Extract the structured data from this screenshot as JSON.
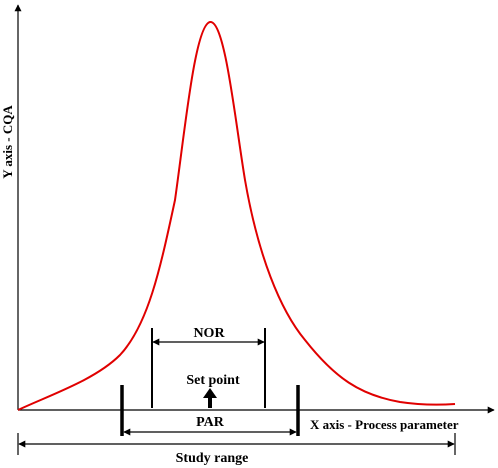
{
  "diagram": {
    "y_axis_label": "Y axis - CQA",
    "x_axis_label": "X axis - Process parameter",
    "curve_color": "#e00000",
    "nor_label": "NOR",
    "set_point_label": "Set point",
    "par_label": "PAR",
    "study_range_label": "Study range",
    "icons": [
      "arrowhead",
      "arrow-up-icon"
    ]
  }
}
